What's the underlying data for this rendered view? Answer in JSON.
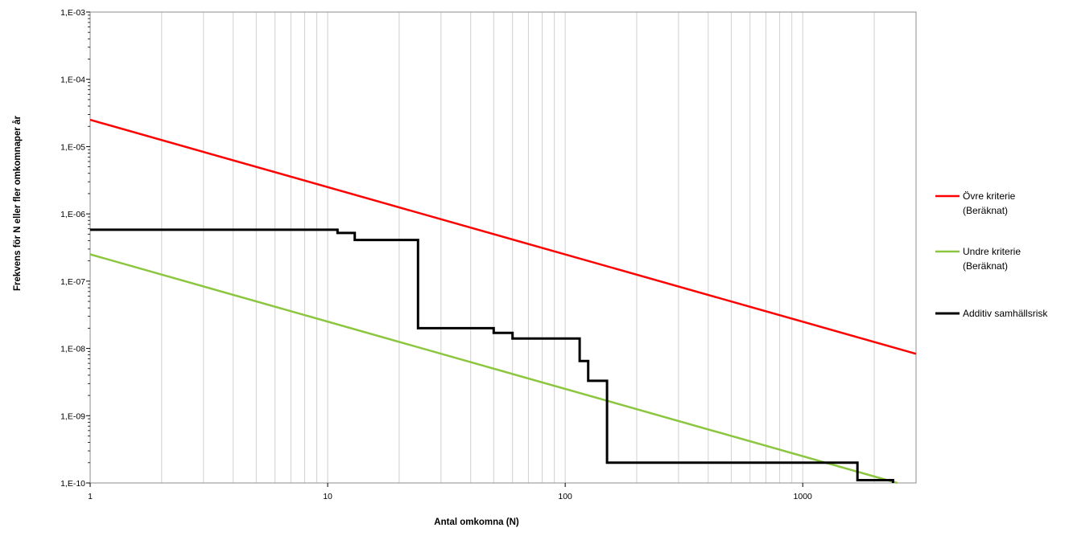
{
  "chart_data": {
    "type": "line",
    "title": "",
    "xlabel": "Antal omkomna (N)",
    "ylabel": "Frekvens för N eller fler omkomnaper år",
    "xscale": "log",
    "yscale": "log",
    "xlim": [
      1,
      3000
    ],
    "ylim": [
      1e-10,
      0.001
    ],
    "grid": "vertical minor and major lines",
    "legend": "right",
    "x_tick_labels": [
      "1",
      "10",
      "100",
      "1000"
    ],
    "y_tick_labels": [
      "1,E-10",
      "1,E-09",
      "1,E-08",
      "1,E-07",
      "1,E-06",
      "1,E-05",
      "1,E-04",
      "1,E-03"
    ],
    "series": [
      {
        "name": "Övre kriterie (Beräknat)",
        "name_lines": [
          "Övre kriterie",
          "(Beräknat)"
        ],
        "color": "#ff0000",
        "style": "line",
        "points": [
          [
            1,
            2.5e-05
          ],
          [
            3000,
            8.3e-09
          ]
        ]
      },
      {
        "name": "Undre kriterie (Beräknat)",
        "name_lines": [
          "Undre kriterie",
          "(Beräknat)"
        ],
        "color": "#8cc63f",
        "style": "line",
        "points": [
          [
            1,
            2.5e-07
          ],
          [
            2500,
            1e-10
          ]
        ]
      },
      {
        "name": "Additiv samhällsrisk",
        "name_lines": [
          "Additiv samhällsrisk"
        ],
        "color": "#000000",
        "style": "step",
        "points": [
          [
            1,
            5.8e-07
          ],
          [
            11,
            5.8e-07
          ],
          [
            11,
            5.2e-07
          ],
          [
            13,
            5.2e-07
          ],
          [
            13,
            4.1e-07
          ],
          [
            24,
            4.1e-07
          ],
          [
            24,
            2e-08
          ],
          [
            50,
            2e-08
          ],
          [
            50,
            1.7e-08
          ],
          [
            60,
            1.7e-08
          ],
          [
            60,
            1.4e-08
          ],
          [
            115,
            1.4e-08
          ],
          [
            115,
            6.5e-09
          ],
          [
            125,
            6.5e-09
          ],
          [
            125,
            3.3e-09
          ],
          [
            150,
            3.3e-09
          ],
          [
            150,
            2e-10
          ],
          [
            1700,
            2e-10
          ],
          [
            1700,
            1.1e-10
          ],
          [
            2400,
            1.1e-10
          ],
          [
            2400,
            1e-10
          ]
        ]
      }
    ]
  }
}
